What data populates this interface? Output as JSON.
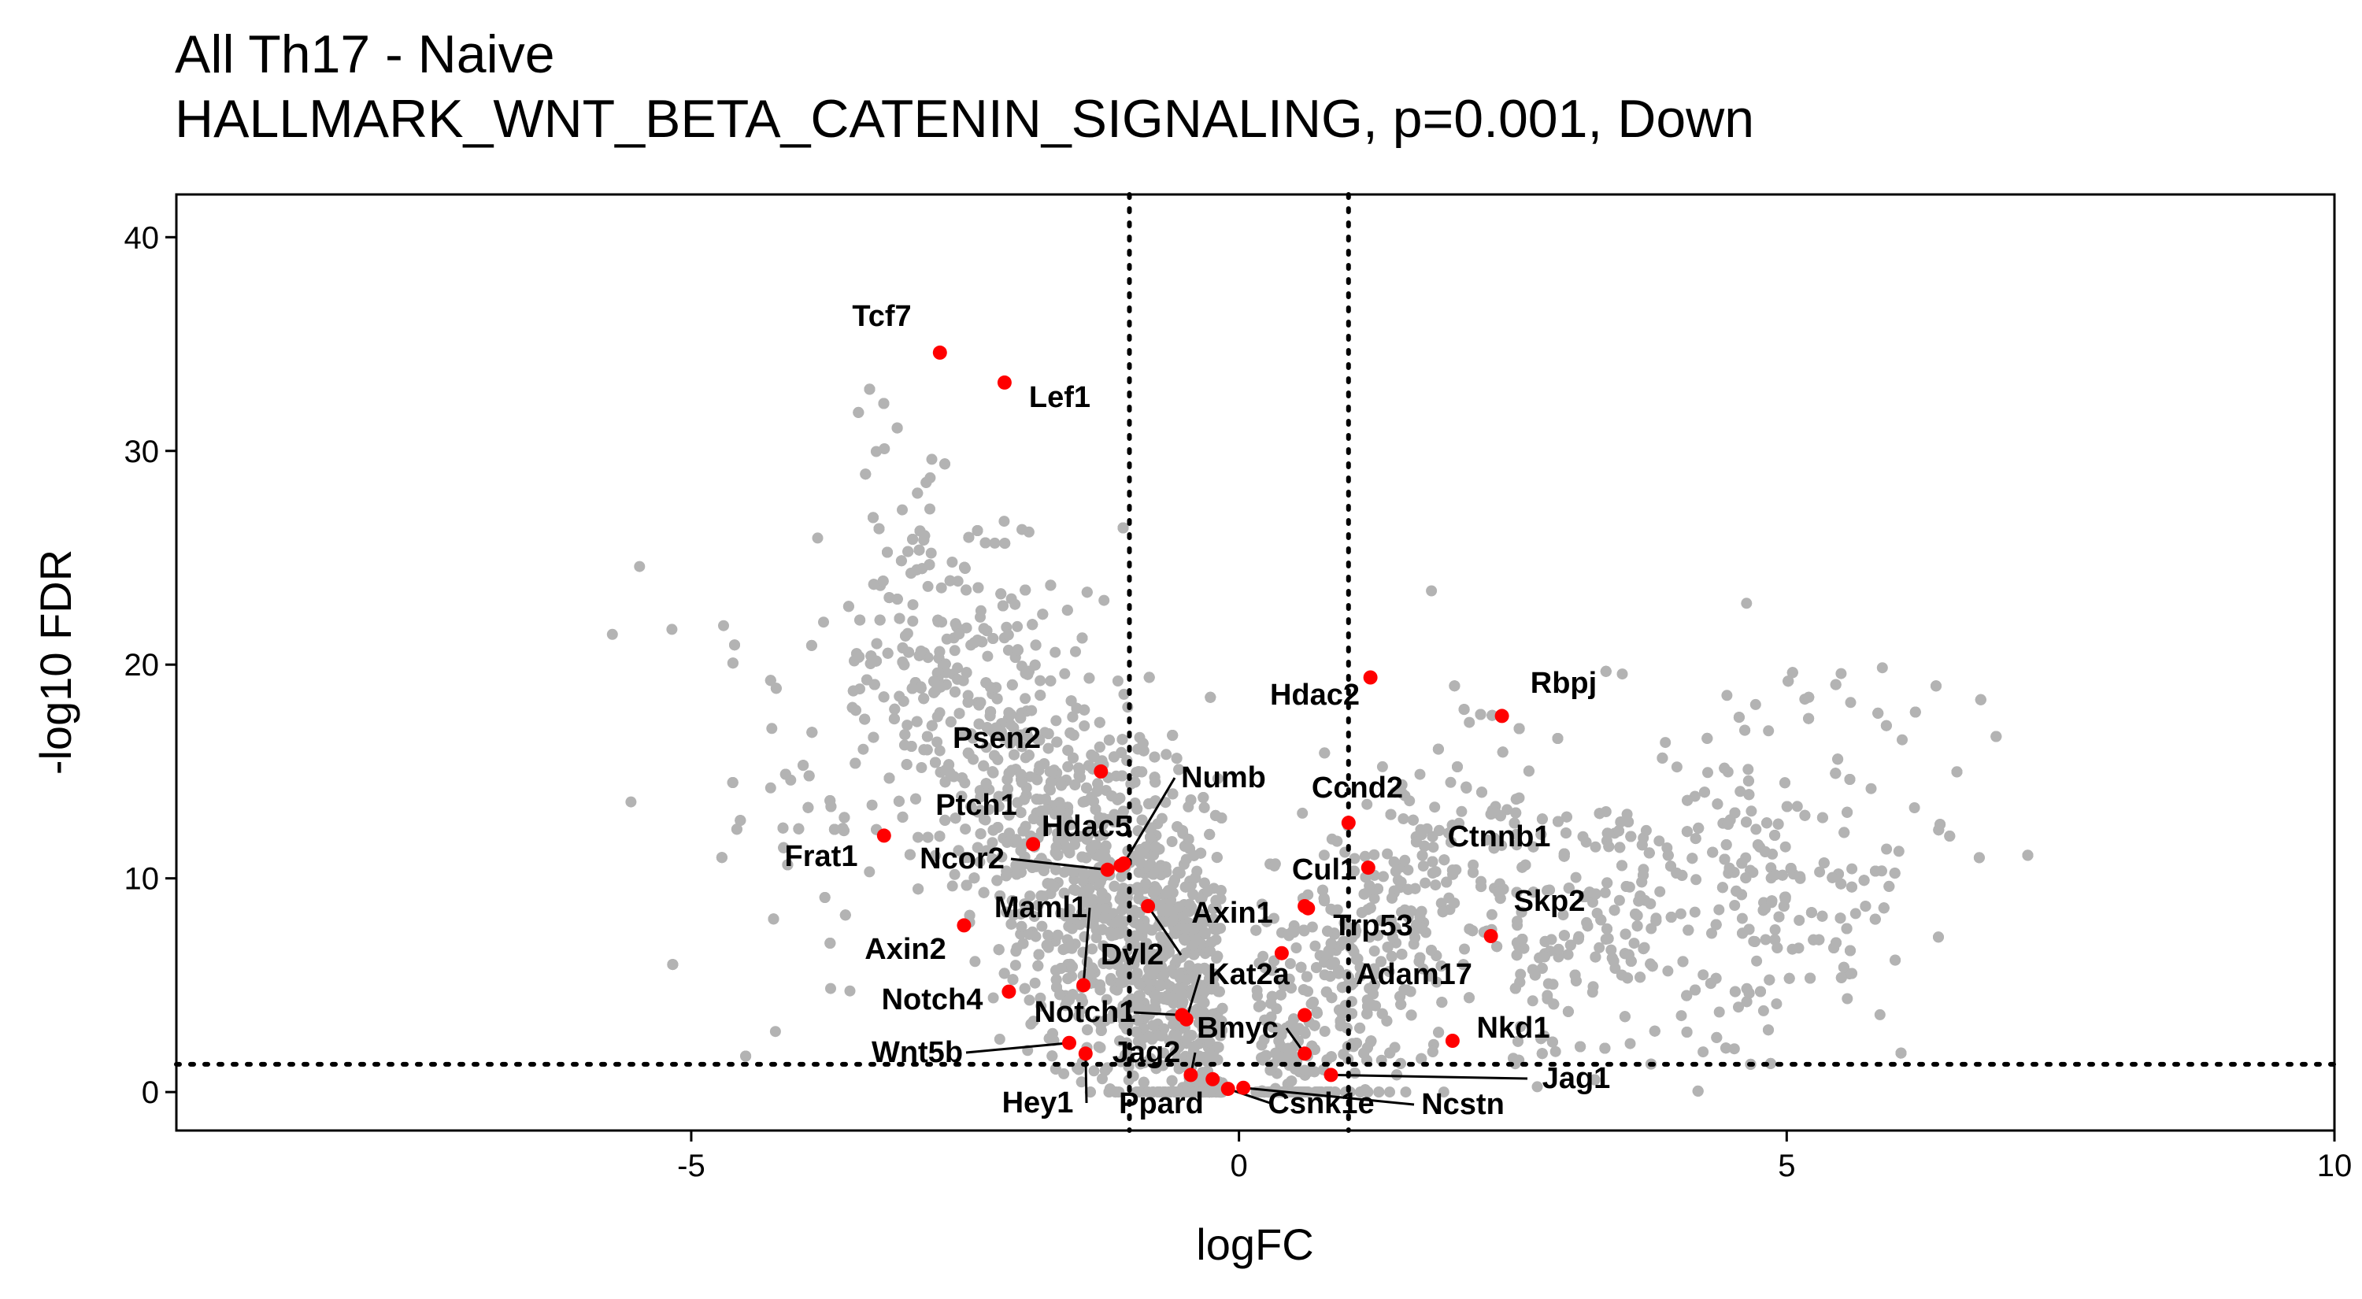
{
  "chart_data": {
    "type": "scatter",
    "title_lines": [
      "All Th17 - Naive",
      "HALLMARK_WNT_BETA_CATENIN_SIGNALING, p=0.001, Down"
    ],
    "xlabel": "logFC",
    "ylabel": "-log10 FDR",
    "xlim": [
      -9.7,
      10
    ],
    "ylim": [
      -1.8,
      42
    ],
    "x_ticks": [
      -5,
      0,
      5,
      10
    ],
    "y_ticks": [
      0,
      10,
      20,
      30,
      40
    ],
    "x_tick_labels": [
      "-5",
      "0",
      "5",
      "10"
    ],
    "y_tick_labels": [
      "0",
      "10",
      "20",
      "30",
      "40"
    ],
    "thresholds": {
      "logFC_low": -1,
      "logFC_high": 1,
      "neg_log10_fdr": 1.3
    },
    "grid": false,
    "colors": {
      "background_points": "#b3b3b3",
      "highlight_points": "#ff0000",
      "text": "#000000"
    },
    "background_series_note_count": 5500,
    "highlighted": [
      {
        "gene": "Tcf7",
        "x": -2.73,
        "y": 34.6
      },
      {
        "gene": "Lef1",
        "x": -2.14,
        "y": 33.2
      },
      {
        "gene": "Psen2",
        "x": -1.26,
        "y": 15.0
      },
      {
        "gene": "Ptch1",
        "x": -1.88,
        "y": 11.6
      },
      {
        "gene": "Frat1",
        "x": -3.24,
        "y": 12.0
      },
      {
        "gene": "Hdac5",
        "x": -1.08,
        "y": 10.6
      },
      {
        "gene": "Numb",
        "x": -1.05,
        "y": 10.7
      },
      {
        "gene": "Ncor2",
        "x": -1.2,
        "y": 10.4
      },
      {
        "gene": "Axin2",
        "x": -2.51,
        "y": 7.8
      },
      {
        "gene": "Maml1",
        "x": -1.42,
        "y": 5.0
      },
      {
        "gene": "Dvl2",
        "x": -0.83,
        "y": 8.7
      },
      {
        "gene": "Notch4",
        "x": -2.1,
        "y": 4.7
      },
      {
        "gene": "Notch1",
        "x": -0.52,
        "y": 3.6
      },
      {
        "gene": "Wnt5b",
        "x": -1.55,
        "y": 2.3
      },
      {
        "gene": "Hey1",
        "x": -1.4,
        "y": 1.8
      },
      {
        "gene": "Jag2",
        "x": -0.44,
        "y": 0.8
      },
      {
        "gene": "Ppard",
        "x": -0.24,
        "y": 0.6
      },
      {
        "gene": "Csnk1e",
        "x": -0.1,
        "y": 0.15
      },
      {
        "gene": "Ncstn",
        "x": 0.04,
        "y": 0.2
      },
      {
        "gene": "Jag1",
        "x": 0.84,
        "y": 0.8
      },
      {
        "gene": "Bmyc",
        "x": 0.6,
        "y": 1.8
      },
      {
        "gene": "Kat2a",
        "x": -0.48,
        "y": 3.4
      },
      {
        "gene": "Adam17",
        "x": 0.6,
        "y": 3.6
      },
      {
        "gene": "Axin1",
        "x": 0.39,
        "y": 6.5
      },
      {
        "gene": "Trp53",
        "x": 0.63,
        "y": 8.6
      },
      {
        "gene": "Cul1",
        "x": 0.6,
        "y": 8.7
      },
      {
        "gene": "Ctnnb1",
        "x": 1.18,
        "y": 10.5
      },
      {
        "gene": "Ccnd2",
        "x": 1.0,
        "y": 12.6
      },
      {
        "gene": "Hdac2",
        "x": 1.2,
        "y": 19.4
      },
      {
        "gene": "Rbpj",
        "x": 2.4,
        "y": 17.6
      },
      {
        "gene": "Skp2",
        "x": 2.3,
        "y": 7.3
      },
      {
        "gene": "Nkd1",
        "x": 1.95,
        "y": 2.4
      }
    ]
  }
}
